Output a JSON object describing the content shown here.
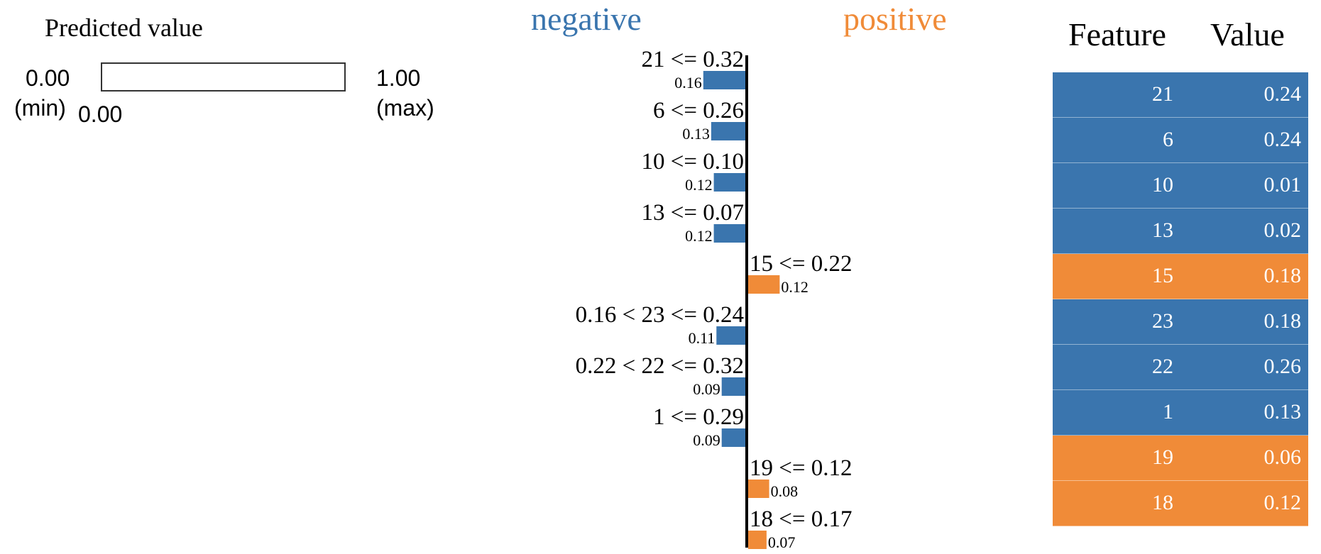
{
  "colors": {
    "negative": "#3a75ae",
    "positive": "#f08b38"
  },
  "predicted": {
    "title": "Predicted value",
    "min_value": "0.00",
    "min_label": "(min)",
    "max_value": "1.00",
    "max_label": "(max)",
    "value": "0.00",
    "fraction": 0.0
  },
  "chart_data": {
    "type": "bar",
    "title": "",
    "legend": {
      "negative": "negative",
      "positive": "positive"
    },
    "bars": [
      {
        "label": "21 <= 0.32",
        "value": 0.16,
        "value_label": "0.16",
        "class": "negative"
      },
      {
        "label": "6 <= 0.26",
        "value": 0.13,
        "value_label": "0.13",
        "class": "negative"
      },
      {
        "label": "10 <= 0.10",
        "value": 0.12,
        "value_label": "0.12",
        "class": "negative"
      },
      {
        "label": "13 <= 0.07",
        "value": 0.12,
        "value_label": "0.12",
        "class": "negative"
      },
      {
        "label": "15 <= 0.22",
        "value": 0.12,
        "value_label": "0.12",
        "class": "positive"
      },
      {
        "label": "0.16 < 23 <= 0.24",
        "value": 0.11,
        "value_label": "0.11",
        "class": "negative"
      },
      {
        "label": "0.22 < 22 <= 0.32",
        "value": 0.09,
        "value_label": "0.09",
        "class": "negative"
      },
      {
        "label": "1 <= 0.29",
        "value": 0.09,
        "value_label": "0.09",
        "class": "negative"
      },
      {
        "label": "19 <= 0.12",
        "value": 0.08,
        "value_label": "0.08",
        "class": "positive"
      },
      {
        "label": "18 <= 0.17",
        "value": 0.07,
        "value_label": "0.07",
        "class": "positive"
      }
    ]
  },
  "table": {
    "headers": {
      "feature": "Feature",
      "value": "Value"
    },
    "rows": [
      {
        "feature": "21",
        "value": "0.24",
        "class": "negative"
      },
      {
        "feature": "6",
        "value": "0.24",
        "class": "negative"
      },
      {
        "feature": "10",
        "value": "0.01",
        "class": "negative"
      },
      {
        "feature": "13",
        "value": "0.02",
        "class": "negative"
      },
      {
        "feature": "15",
        "value": "0.18",
        "class": "positive"
      },
      {
        "feature": "23",
        "value": "0.18",
        "class": "negative"
      },
      {
        "feature": "22",
        "value": "0.26",
        "class": "negative"
      },
      {
        "feature": "1",
        "value": "0.13",
        "class": "negative"
      },
      {
        "feature": "19",
        "value": "0.06",
        "class": "positive"
      },
      {
        "feature": "18",
        "value": "0.12",
        "class": "positive"
      }
    ]
  }
}
